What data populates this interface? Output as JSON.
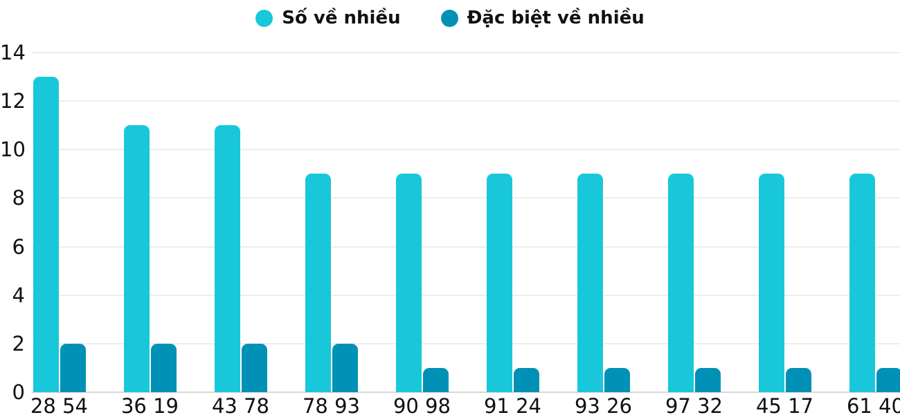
{
  "legend": {
    "items": [
      {
        "label": "Số về nhiều",
        "color": "#19C7DB"
      },
      {
        "label": "Đặc biệt về nhiều",
        "color": "#0191B6"
      }
    ]
  },
  "chart_data": {
    "type": "bar",
    "title": "",
    "xlabel": "",
    "ylabel": "",
    "categories": [
      "28 54",
      "36 19",
      "43 78",
      "78 93",
      "90 98",
      "91 24",
      "93 26",
      "97 32",
      "45 17",
      "61 40"
    ],
    "series": [
      {
        "name": "Số về nhiều",
        "color": "#19C7DB",
        "values": [
          13,
          11,
          11,
          9,
          9,
          9,
          9,
          9,
          9,
          9
        ]
      },
      {
        "name": "Đặc biệt về nhiều",
        "color": "#0191B6",
        "values": [
          2,
          2,
          2,
          2,
          1,
          1,
          1,
          1,
          1,
          1
        ]
      }
    ],
    "ylim": [
      0,
      14
    ],
    "yticks": [
      0,
      2,
      4,
      6,
      8,
      10,
      12,
      14
    ],
    "grid": true,
    "legend_position": "top",
    "colors": {
      "gridline": "#ededed",
      "baseline": "#d8d8d8",
      "text": "#111111",
      "background": "#ffffff"
    }
  }
}
